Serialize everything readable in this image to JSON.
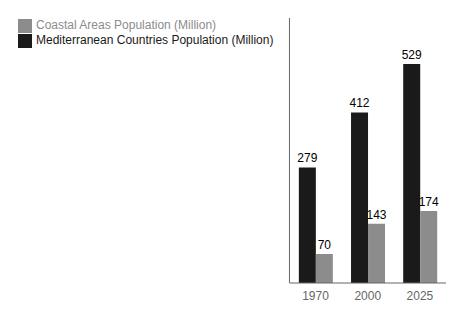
{
  "chart_data": {
    "type": "bar",
    "categories": [
      "1970",
      "2000",
      "2025"
    ],
    "series": [
      {
        "name": "Mediterranean Countries Population (Million)",
        "color": "#1a1a1a",
        "values": [
          279,
          412,
          529
        ]
      },
      {
        "name": "Coastal Areas Population (Million)",
        "color": "#8c8c8c",
        "values": [
          70,
          143,
          174
        ]
      }
    ],
    "ylim": [
      0,
      640
    ],
    "grid": false,
    "legend": "upper left",
    "data_labels": true,
    "tick_labels": "x"
  }
}
